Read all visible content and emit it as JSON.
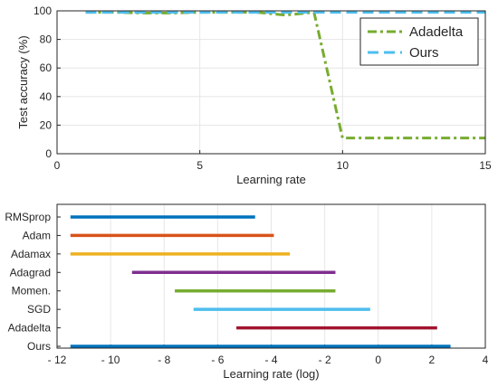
{
  "chart_data": [
    {
      "type": "line",
      "title": "",
      "xlabel": "Learning rate",
      "ylabel": "Test accuracy (%)",
      "xlim": [
        0,
        15
      ],
      "ylim": [
        0,
        100
      ],
      "xticks": [
        0,
        5,
        10,
        15
      ],
      "xtick_labels": [
        "0",
        "5",
        "10",
        "15"
      ],
      "yticks": [
        0,
        20,
        40,
        60,
        80,
        100
      ],
      "ytick_labels": [
        "0",
        "20",
        "40",
        "60",
        "80",
        "100"
      ],
      "grid": true,
      "legend_position": "top-right",
      "series": [
        {
          "name": "Adadelta",
          "color": "#77AC30",
          "line_style": "dash-dot",
          "x": [
            1,
            2,
            3,
            4,
            5,
            6,
            7,
            8,
            9,
            10,
            11,
            12,
            13,
            14,
            15
          ],
          "y": [
            99,
            99,
            98.5,
            98.5,
            99,
            99,
            99,
            97,
            99,
            11,
            11,
            11,
            11,
            11,
            11
          ]
        },
        {
          "name": "Ours",
          "color": "#4DBEEE",
          "line_style": "dashed",
          "x": [
            1,
            2,
            3,
            4,
            5,
            6,
            7,
            8,
            9,
            10,
            11,
            12,
            13,
            14,
            15
          ],
          "y": [
            99,
            99,
            99,
            99,
            99,
            99,
            99,
            99,
            99,
            99,
            99,
            99,
            99,
            99,
            99
          ]
        }
      ]
    },
    {
      "type": "bar",
      "orientation": "horizontal-range",
      "title": "",
      "xlabel": "Learning rate (log)",
      "ylabel": "",
      "xlim": [
        -12,
        4
      ],
      "xticks": [
        -12,
        -10,
        -8,
        -6,
        -4,
        -2,
        0,
        2,
        4
      ],
      "xtick_labels": [
        "- 12",
        "- 10",
        "- 8",
        "- 6",
        "- 4",
        "- 2",
        "0",
        "2",
        "4"
      ],
      "grid": true,
      "categories": [
        "RMSprop",
        "Adam",
        "Adamax",
        "Adagrad",
        "Momen.",
        "SGD",
        "Adadelta",
        "Ours"
      ],
      "ranges": [
        {
          "start": -11.5,
          "end": -4.6,
          "color": "#0072BD"
        },
        {
          "start": -11.5,
          "end": -3.9,
          "color": "#D95319"
        },
        {
          "start": -11.5,
          "end": -3.3,
          "color": "#EDB120"
        },
        {
          "start": -9.2,
          "end": -1.6,
          "color": "#7E2F8E"
        },
        {
          "start": -7.6,
          "end": -1.6,
          "color": "#77AC30"
        },
        {
          "start": -6.9,
          "end": -0.3,
          "color": "#4DBEEE"
        },
        {
          "start": -5.3,
          "end": 2.2,
          "color": "#A2142F"
        },
        {
          "start": -11.5,
          "end": 2.7,
          "color": "#0072BD"
        }
      ]
    }
  ]
}
